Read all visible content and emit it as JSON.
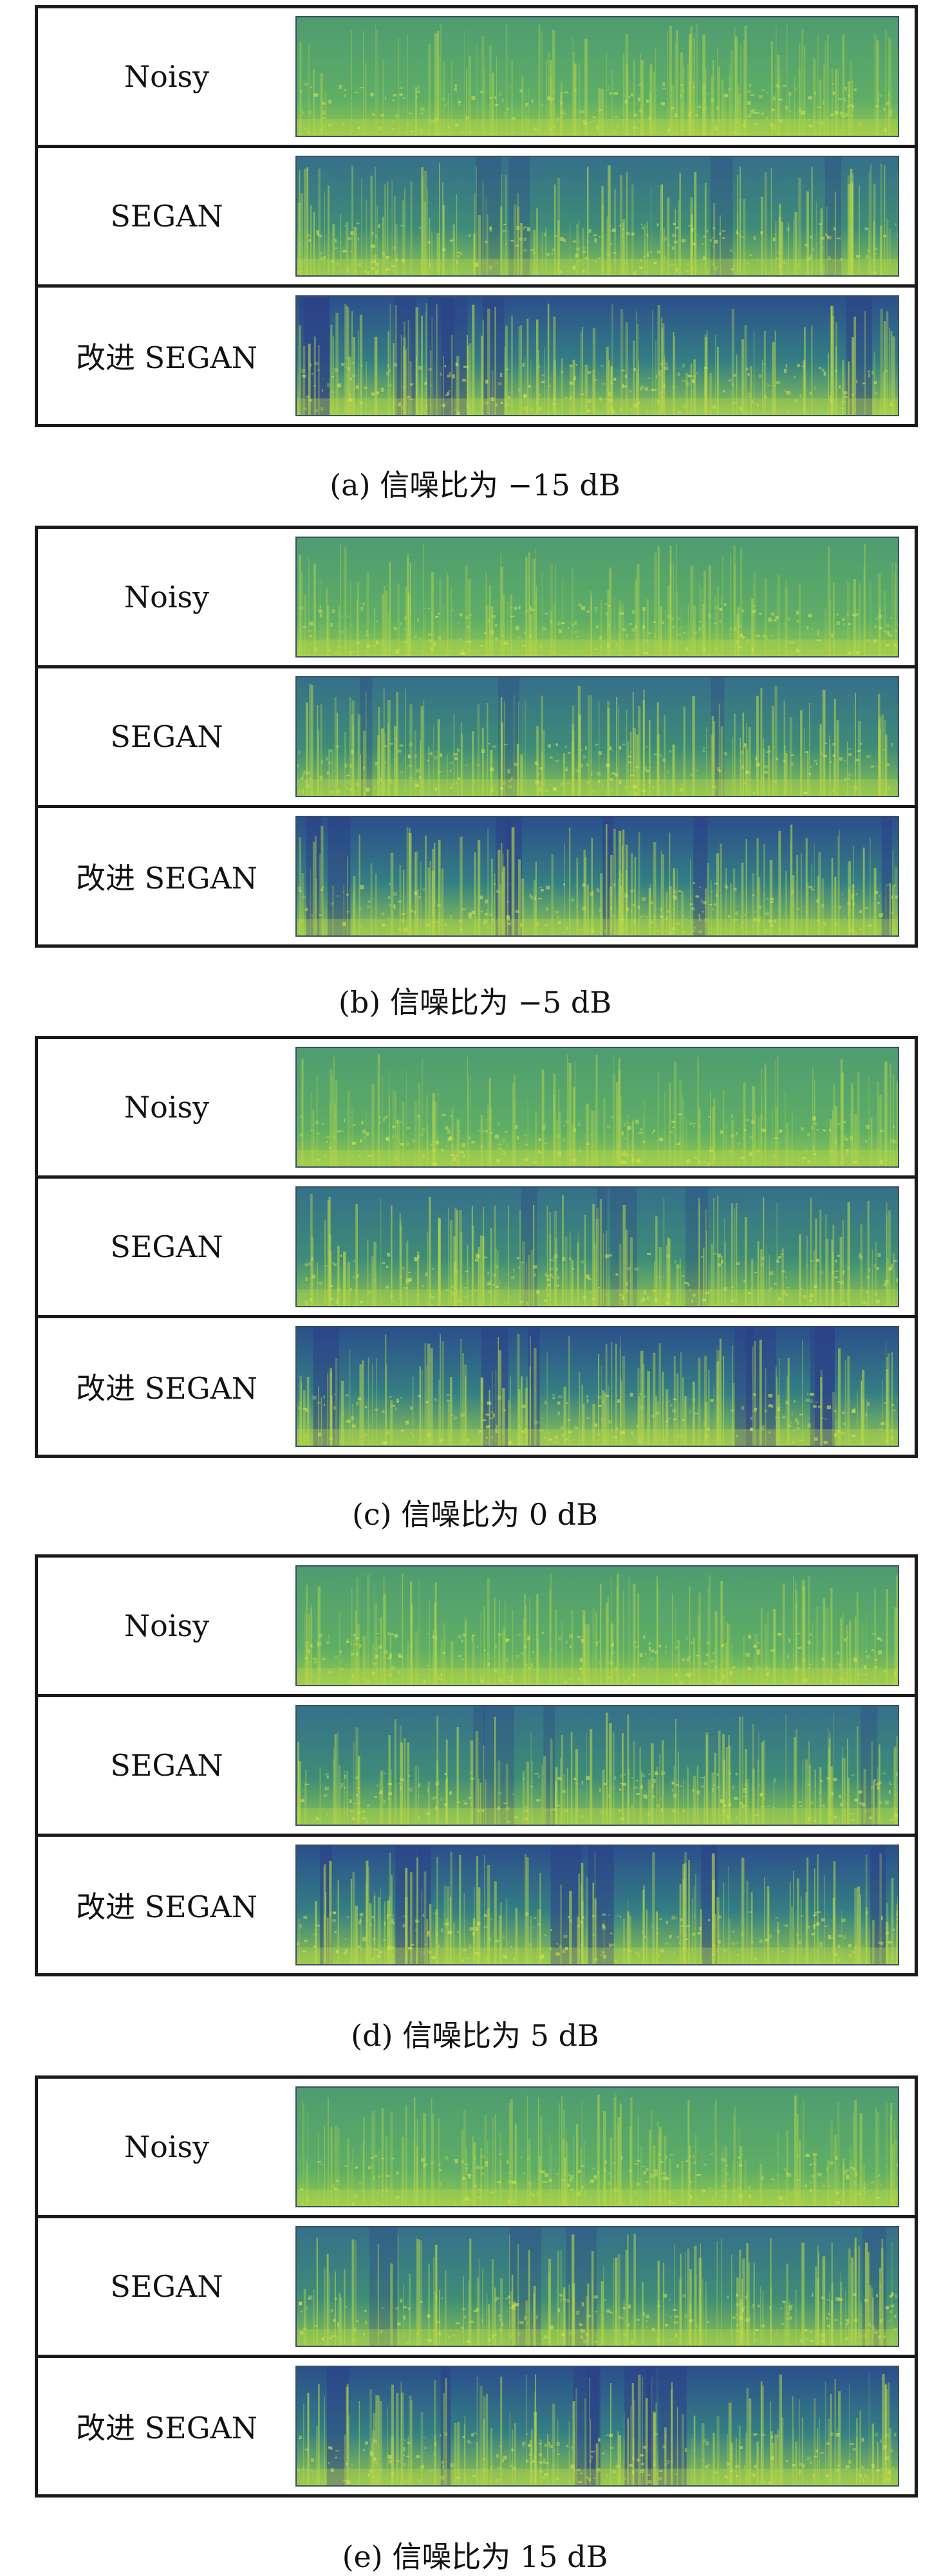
{
  "panels": [
    {
      "caption": "(a) 信噪比为 −15 dB",
      "rows": [
        {
          "label": "Noisy",
          "variant": "noisy"
        },
        {
          "label": "SEGAN",
          "variant": "segan"
        },
        {
          "label": "改进 SEGAN",
          "variant": "improved"
        }
      ]
    },
    {
      "caption": "(b) 信噪比为 −5 dB",
      "rows": [
        {
          "label": "Noisy",
          "variant": "noisy"
        },
        {
          "label": "SEGAN",
          "variant": "segan"
        },
        {
          "label": "改进 SEGAN",
          "variant": "improved"
        }
      ]
    },
    {
      "caption": "(c) 信噪比为 0 dB",
      "rows": [
        {
          "label": "Noisy",
          "variant": "noisy"
        },
        {
          "label": "SEGAN",
          "variant": "segan"
        },
        {
          "label": "改进 SEGAN",
          "variant": "improved"
        }
      ]
    },
    {
      "caption": "(d) 信噪比为 5 dB",
      "rows": [
        {
          "label": "Noisy",
          "variant": "noisy"
        },
        {
          "label": "SEGAN",
          "variant": "segan"
        },
        {
          "label": "改进 SEGAN",
          "variant": "improved"
        }
      ]
    },
    {
      "caption": "(e) 信噪比为 15 dB",
      "rows": [
        {
          "label": "Noisy",
          "variant": "noisy"
        },
        {
          "label": "SEGAN",
          "variant": "segan"
        },
        {
          "label": "改进 SEGAN",
          "variant": "improved"
        }
      ]
    }
  ],
  "colors": {
    "noisy_base": "#5aa86a",
    "segan_base": "#3f8a7c",
    "improved_base": "#2f6d86",
    "dark": "#2c3f86",
    "bright": "#b9d84a"
  }
}
